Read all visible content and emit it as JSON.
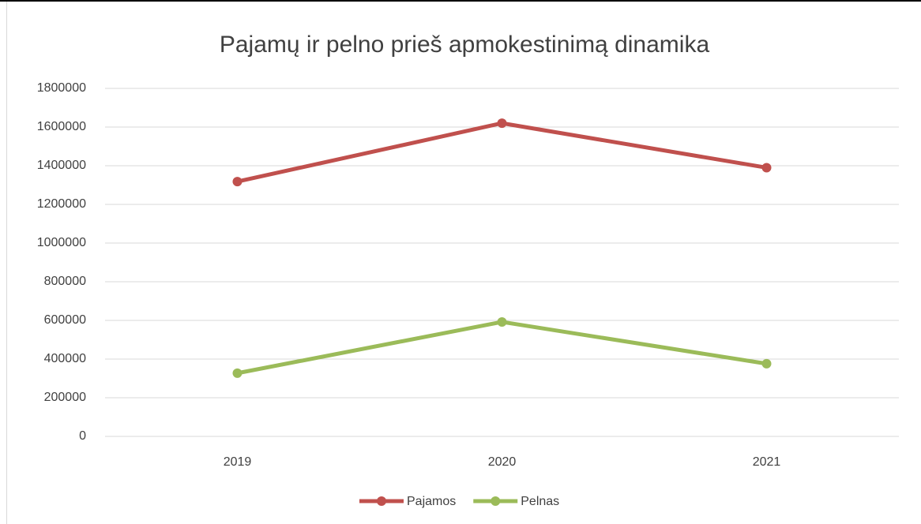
{
  "chart_data": {
    "type": "line",
    "title": "Pajamų ir pelno prieš apmokestinimą dinamika",
    "categories": [
      "2019",
      "2020",
      "2021"
    ],
    "series": [
      {
        "name": "Pajamos",
        "color": "#c0504d",
        "values": [
          1318000,
          1620000,
          1390000
        ]
      },
      {
        "name": "Pelnas",
        "color": "#9bbb59",
        "values": [
          327000,
          592000,
          376000
        ]
      }
    ],
    "ylim": [
      0,
      1800000
    ],
    "yticks": [
      0,
      200000,
      400000,
      600000,
      800000,
      1000000,
      1200000,
      1400000,
      1600000,
      1800000
    ],
    "grid": true,
    "legend": "bottom"
  }
}
